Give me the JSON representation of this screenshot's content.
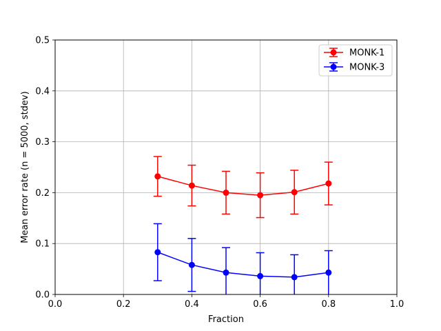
{
  "chart_data": {
    "type": "line",
    "title": "",
    "xlabel": "Fraction",
    "ylabel": "Mean error rate (n = 5000, stdev)",
    "xlim": [
      0.0,
      1.0
    ],
    "ylim": [
      0.0,
      0.5
    ],
    "xticks": [
      "0.0",
      "0.2",
      "0.4",
      "0.6",
      "0.8",
      "1.0"
    ],
    "yticks": [
      "0.0",
      "0.1",
      "0.2",
      "0.3",
      "0.4",
      "0.5"
    ],
    "grid": true,
    "legend_position": "top-right",
    "x": [
      0.3,
      0.4,
      0.5,
      0.6,
      0.7,
      0.8
    ],
    "series": [
      {
        "name": "MONK-1",
        "color": "#ff0000",
        "values": [
          0.232,
          0.214,
          0.2,
          0.195,
          0.201,
          0.218
        ],
        "errors": [
          0.039,
          0.04,
          0.042,
          0.044,
          0.043,
          0.042
        ]
      },
      {
        "name": "MONK-3",
        "color": "#0000ff",
        "values": [
          0.083,
          0.058,
          0.043,
          0.036,
          0.034,
          0.043
        ],
        "errors": [
          0.056,
          0.052,
          0.049,
          0.046,
          0.044,
          0.043
        ]
      }
    ]
  }
}
